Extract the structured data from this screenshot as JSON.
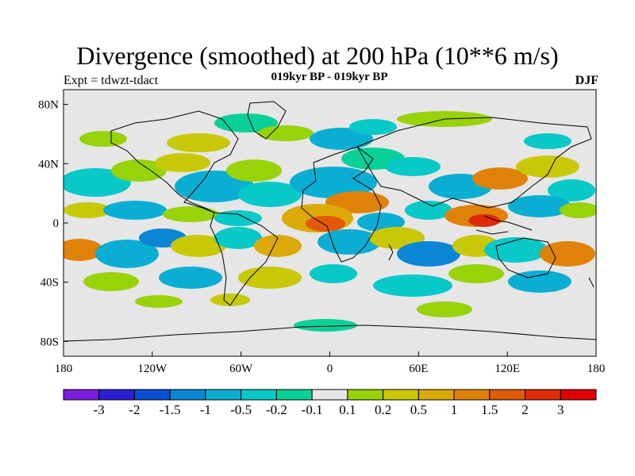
{
  "header": {
    "title": "Divergence (smoothed) at 200 hPa (10**6 m/s)",
    "left": "Expt = tdwzt-tdact",
    "center": "019kyr BP - 019kyr BP",
    "right": "DJF"
  },
  "axes": {
    "lat_labels": [
      "80N",
      "40N",
      "0",
      "40S",
      "80S"
    ],
    "lat_values": [
      80,
      40,
      0,
      -40,
      -80
    ],
    "lon_labels": [
      "180",
      "120W",
      "60W",
      "0",
      "60E",
      "120E",
      "180"
    ],
    "lon_values": [
      -180,
      -120,
      -60,
      0,
      60,
      120,
      180
    ],
    "lon_range": [
      -180,
      180
    ],
    "lat_range": [
      -90,
      90
    ]
  },
  "colorbar": {
    "labels": [
      "-3",
      "-2",
      "-1.5",
      "-1",
      "-0.5",
      "-0.2",
      "-0.1",
      "0.1",
      "0.2",
      "0.5",
      "1",
      "1.5",
      "2",
      "3"
    ],
    "colors": [
      "#7a1ee0",
      "#2a1ed8",
      "#0a4ed6",
      "#0a86d6",
      "#0aaed2",
      "#08c8c8",
      "#08d098",
      "#e6e6e6",
      "#98d208",
      "#c8c808",
      "#dcaa08",
      "#e08208",
      "#e05a08",
      "#e02a08",
      "#e00000"
    ]
  },
  "colors": {
    "ocean_neutral": "#e6e6e6",
    "coast": "#000000"
  }
}
